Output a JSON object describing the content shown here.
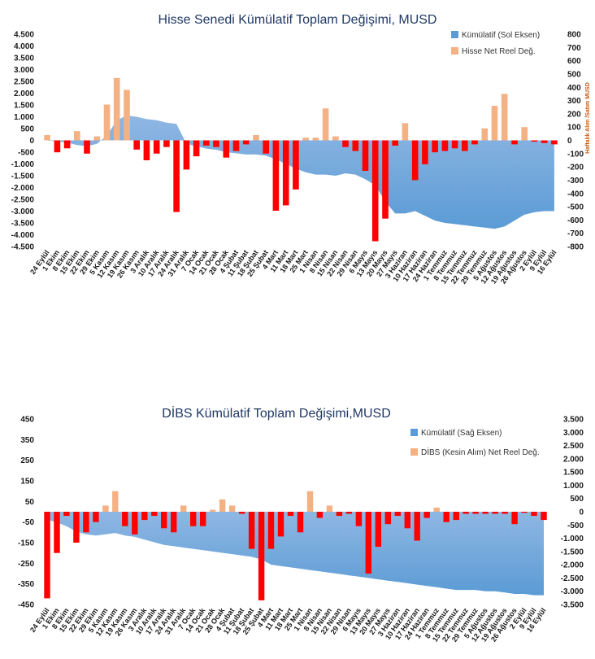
{
  "colors": {
    "area": "#5b9bd5",
    "area_light": "#8fb7e3",
    "bar_pos": "#f4b183",
    "bar_neg": "#ff0000",
    "title": "#1f3864",
    "right_axis_label": "#c55a11"
  },
  "chart_data": [
    {
      "type": "bar",
      "title": "Hisse Senedi Kümülatif Toplam Değişimi, MUSD",
      "categories": [
        "24 Eylül",
        "1 Ekim",
        "8 Ekim",
        "15 Ekim",
        "22 Ekim",
        "29 Ekim",
        "5 Kasım",
        "12 Kasım",
        "19 Kasım",
        "26 Kasım",
        "3 Aralık",
        "10 Aralık",
        "17 Aralık",
        "24 Aralık",
        "31 Aralık",
        "7 Ocak",
        "14 Ocak",
        "21 Ocak",
        "28 Ocak",
        "4 Şubat",
        "11 Şubat",
        "18 Şubat",
        "25 Şubat",
        "4 Mart",
        "11 Mart",
        "18 Mart",
        "25 Mart",
        "1 Nisan",
        "8 Nisan",
        "15 Nisan",
        "22 Nisan",
        "29 Nisan",
        "6 Mayıs",
        "13 Mayıs",
        "20 Mayıs",
        "27 Mayıs",
        "3 Haziran",
        "10 Haziran",
        "17 Haziran",
        "24 Haziran",
        "1 Temmuz",
        "8 Temmuz",
        "15 Temmuz",
        "22 Temmuz",
        "29 Temmuz",
        "5 Ağustos",
        "12 Ağustos",
        "19 Ağustos",
        "26 Ağustos",
        "2 Eylül",
        "9 Eylül",
        "16 Eylül"
      ],
      "series": [
        {
          "name": "Kümülatif (Sol Eksen)",
          "kind": "area",
          "axis": "left",
          "values": [
            0,
            -50,
            -100,
            -200,
            -250,
            -150,
            200,
            850,
            1050,
            1000,
            900,
            850,
            750,
            700,
            -150,
            -250,
            -350,
            -400,
            -500,
            -550,
            -600,
            -600,
            -650,
            -800,
            -1000,
            -1200,
            -1350,
            -1450,
            -1450,
            -1500,
            -1400,
            -1450,
            -1650,
            -1900,
            -2600,
            -3100,
            -3100,
            -3000,
            -3200,
            -3400,
            -3500,
            -3550,
            -3600,
            -3650,
            -3700,
            -3750,
            -3650,
            -3400,
            -3150,
            -3050,
            -3000,
            -3000
          ]
        },
        {
          "name": "Hisse Net Reel Değ.",
          "kind": "bar",
          "axis": "right",
          "values": [
            40,
            -90,
            -60,
            70,
            -100,
            30,
            270,
            470,
            380,
            -70,
            -150,
            -100,
            -50,
            -540,
            -220,
            -120,
            -40,
            -50,
            -130,
            -80,
            -30,
            40,
            -100,
            -530,
            -490,
            -370,
            20,
            20,
            240,
            30,
            -50,
            -80,
            -230,
            -760,
            -590,
            -40,
            130,
            -300,
            -180,
            -90,
            -80,
            -60,
            -80,
            -30,
            90,
            260,
            350,
            -30,
            100,
            -10,
            -20,
            -30
          ]
        }
      ],
      "ylim_left": [
        -4500,
        4500
      ],
      "ylim_right": [
        -800,
        800
      ],
      "ylabel_right": "Haftalık Alım /Satım MUSD",
      "left_ticks": [
        "4.500",
        "4.000",
        "3.500",
        "3.000",
        "2.500",
        "2.000",
        "1.500",
        "1.000",
        "500",
        "0",
        "-500",
        "-1.000",
        "-1.500",
        "-2.000",
        "-2.500",
        "-3.000",
        "-3.500",
        "-4.000",
        "-4.500"
      ],
      "right_ticks": [
        "800",
        "700",
        "600",
        "500",
        "400",
        "300",
        "200",
        "100",
        "0",
        "-100",
        "-200",
        "-300",
        "-400",
        "-500",
        "-600",
        "-700",
        "-800"
      ],
      "legend": [
        "Kümülatif (Sol Eksen)",
        "Hisse Net Reel Değ."
      ],
      "legend_position": "top-right"
    },
    {
      "type": "bar",
      "title": "DİBS Kümülatif Toplam Değişimi,MUSD",
      "categories": [
        "24 Eylül",
        "1 Ekim",
        "8 Ekim",
        "15 Ekim",
        "22 Ekim",
        "29 Ekim",
        "5 Kasım",
        "12 Kasım",
        "19 Kasım",
        "26 Kasım",
        "3 Aralık",
        "10 Aralık",
        "17 Aralık",
        "24 Aralık",
        "31 Aralık",
        "7 Ocak",
        "14 Ocak",
        "21 Ocak",
        "28 Ocak",
        "4 Şubat",
        "11 Şubat",
        "18 Şubat",
        "25 Şubat",
        "4 Mart",
        "11 Mart",
        "18 Mart",
        "25 Mart",
        "1 Nisan",
        "8 Nisan",
        "15 Nisan",
        "22 Nisan",
        "29 Nisan",
        "6 Mayıs",
        "13 Mayıs",
        "20 Mayıs",
        "27 Mayıs",
        "3 Haziran",
        "10 Haziran",
        "17 Haziran",
        "24 Haziran",
        "1 Temmuz",
        "8 Temmuz",
        "15 Temmuz",
        "22 Temmuz",
        "29 Temmuz",
        "5 Ağustos",
        "12 Ağustos",
        "19 Ağustos",
        "26 Ağustos",
        "2 Eylül",
        "9 Eylül",
        "16 Eylül"
      ],
      "series": [
        {
          "name": "Kümülatif (Sağ Eksen)",
          "kind": "area",
          "axis": "right",
          "values": [
            -300,
            -400,
            -550,
            -750,
            -850,
            -900,
            -850,
            -800,
            -900,
            -950,
            -1050,
            -1150,
            -1250,
            -1300,
            -1350,
            -1400,
            -1450,
            -1500,
            -1550,
            -1600,
            -1650,
            -1700,
            -1800,
            -2000,
            -2050,
            -2100,
            -2150,
            -2200,
            -2250,
            -2300,
            -2350,
            -2400,
            -2450,
            -2500,
            -2550,
            -2600,
            -2650,
            -2700,
            -2750,
            -2800,
            -2850,
            -2900,
            -2950,
            -2950,
            -2950,
            -3000,
            -3000,
            -3050,
            -3100,
            -3100,
            -3150,
            -3150
          ]
        },
        {
          "name": "DİBS (Kesin Alım) Net Reel Değ.",
          "kind": "bar",
          "axis": "left",
          "values": [
            -420,
            -200,
            -20,
            -150,
            -100,
            -50,
            30,
            100,
            -70,
            -110,
            -40,
            -20,
            -80,
            -100,
            30,
            -70,
            -70,
            10,
            60,
            30,
            -10,
            -180,
            -430,
            -180,
            -120,
            -20,
            -100,
            100,
            -30,
            30,
            -20,
            -10,
            -70,
            -300,
            -170,
            -60,
            -20,
            -80,
            -140,
            -30,
            20,
            -50,
            -40,
            -10,
            -10,
            -10,
            -10,
            -10,
            -60,
            -5,
            -20,
            -40
          ]
        }
      ],
      "ylim_left": [
        -450,
        450
      ],
      "ylim_right": [
        -3500,
        3500
      ],
      "left_ticks": [
        "450",
        "350",
        "250",
        "150",
        "50",
        "-50",
        "-150",
        "-250",
        "-350",
        "-450"
      ],
      "right_ticks": [
        "3.500",
        "3.000",
        "2.500",
        "2.000",
        "1.500",
        "1.000",
        "500",
        "0",
        "-500",
        "-1.000",
        "-1.500",
        "-2.000",
        "-2.500",
        "-3.000",
        "-3.500"
      ],
      "legend": [
        "Kümülatif (Sağ Eksen)",
        "DİBS (Kesin Alım) Net Reel Değ."
      ],
      "legend_position": "top-right"
    }
  ]
}
